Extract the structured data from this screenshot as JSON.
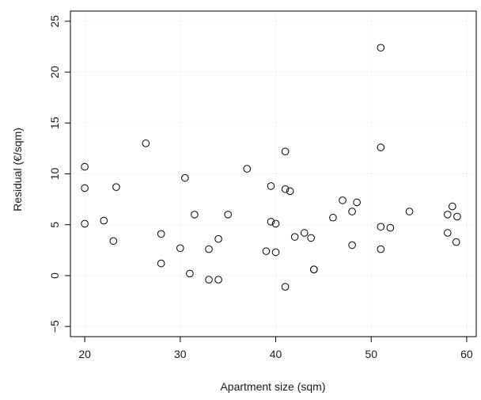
{
  "chart_data": {
    "type": "scatter",
    "title": "",
    "xlabel": "Apartment size (sqm)",
    "ylabel": "Residual (€/sqm)",
    "xlim": [
      18.5,
      61
    ],
    "ylim": [
      -6,
      26
    ],
    "x_ticks": [
      20,
      30,
      40,
      50,
      60
    ],
    "y_ticks": [
      -5,
      0,
      5,
      10,
      15,
      20,
      25
    ],
    "x_tick_labels": [
      "20",
      "30",
      "40",
      "50",
      "60"
    ],
    "y_tick_labels": [
      "−5",
      "0",
      "5",
      "10",
      "15",
      "20",
      "25"
    ],
    "grid": true,
    "points": [
      {
        "x": 20,
        "y": 10.7
      },
      {
        "x": 20,
        "y": 8.6
      },
      {
        "x": 20,
        "y": 5.1
      },
      {
        "x": 22,
        "y": 5.4
      },
      {
        "x": 23,
        "y": 3.4
      },
      {
        "x": 23.3,
        "y": 8.7
      },
      {
        "x": 26.4,
        "y": 13.0
      },
      {
        "x": 28,
        "y": 4.1
      },
      {
        "x": 28,
        "y": 1.2
      },
      {
        "x": 30,
        "y": 2.7
      },
      {
        "x": 30.5,
        "y": 9.6
      },
      {
        "x": 31,
        "y": 0.2
      },
      {
        "x": 31.5,
        "y": 6.0
      },
      {
        "x": 33,
        "y": 2.6
      },
      {
        "x": 33,
        "y": -0.4
      },
      {
        "x": 34,
        "y": 3.6
      },
      {
        "x": 34,
        "y": -0.4
      },
      {
        "x": 35,
        "y": 6.0
      },
      {
        "x": 37,
        "y": 10.5
      },
      {
        "x": 39,
        "y": 2.4
      },
      {
        "x": 39.5,
        "y": 8.8
      },
      {
        "x": 39.5,
        "y": 5.3
      },
      {
        "x": 40,
        "y": 5.1
      },
      {
        "x": 40,
        "y": 2.3
      },
      {
        "x": 41,
        "y": 12.2
      },
      {
        "x": 41,
        "y": 8.5
      },
      {
        "x": 41,
        "y": -1.1
      },
      {
        "x": 41.5,
        "y": 8.3
      },
      {
        "x": 42,
        "y": 3.8
      },
      {
        "x": 43,
        "y": 4.2
      },
      {
        "x": 43.7,
        "y": 3.7
      },
      {
        "x": 44,
        "y": 0.6
      },
      {
        "x": 44,
        "y": 0.6
      },
      {
        "x": 46,
        "y": 5.7
      },
      {
        "x": 47,
        "y": 7.4
      },
      {
        "x": 48,
        "y": 6.3
      },
      {
        "x": 48,
        "y": 3.0
      },
      {
        "x": 48.5,
        "y": 7.2
      },
      {
        "x": 51,
        "y": 22.4
      },
      {
        "x": 51,
        "y": 12.6
      },
      {
        "x": 51,
        "y": 4.8
      },
      {
        "x": 51,
        "y": 2.6
      },
      {
        "x": 52,
        "y": 4.7
      },
      {
        "x": 54,
        "y": 6.3
      },
      {
        "x": 58,
        "y": 6.0
      },
      {
        "x": 58,
        "y": 4.2
      },
      {
        "x": 58.5,
        "y": 6.8
      },
      {
        "x": 59,
        "y": 5.8
      },
      {
        "x": 58.9,
        "y": 3.3
      }
    ]
  }
}
